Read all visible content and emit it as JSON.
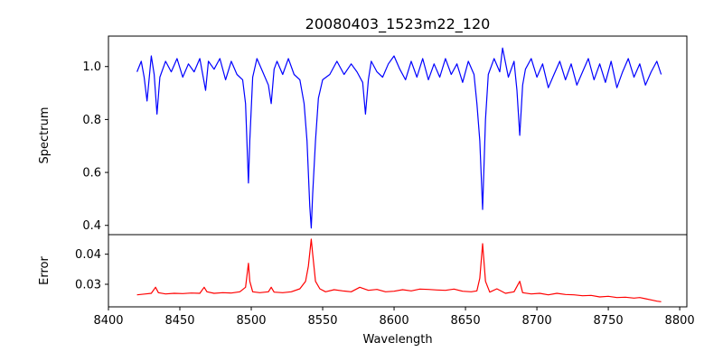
{
  "chart_data": [
    {
      "type": "line",
      "title": "20080403_1523m22_120",
      "xlabel": "",
      "ylabel": "Spectrum",
      "xlim": [
        8400,
        8805
      ],
      "ylim": [
        0.365,
        1.115
      ],
      "xticks": [
        8400,
        8450,
        8500,
        8550,
        8600,
        8650,
        8700,
        8750,
        8800
      ],
      "yticks": [
        0.4,
        0.6,
        0.8,
        1.0
      ],
      "ytick_labels": [
        "0.4",
        "0.6",
        "0.8",
        "1.0"
      ],
      "grid": false,
      "colors": {
        "line": "#0000ff"
      },
      "series": [
        {
          "x": [
            8420,
            8423,
            8425,
            8427,
            8430,
            8432,
            8434,
            8436,
            8440,
            8444,
            8448,
            8452,
            8456,
            8460,
            8464,
            8468,
            8470,
            8474,
            8478,
            8482,
            8486,
            8490,
            8494,
            8496,
            8498,
            8499,
            8501,
            8504,
            8508,
            8512,
            8514,
            8516,
            8518,
            8522,
            8526,
            8530,
            8534,
            8537,
            8539,
            8541,
            8542,
            8543,
            8545,
            8547,
            8550,
            8555,
            8560,
            8565,
            8570,
            8574,
            8578,
            8580,
            8582,
            8584,
            8588,
            8592,
            8596,
            8600,
            8604,
            8608,
            8612,
            8616,
            8620,
            8624,
            8628,
            8632,
            8636,
            8640,
            8644,
            8648,
            8652,
            8656,
            8658,
            8660,
            8662,
            8664,
            8666,
            8670,
            8674,
            8676,
            8680,
            8684,
            8686,
            8688,
            8690,
            8692,
            8696,
            8700,
            8704,
            8708,
            8712,
            8716,
            8720,
            8724,
            8728,
            8732,
            8736,
            8740,
            8744,
            8748,
            8752,
            8756,
            8760,
            8764,
            8768,
            8772,
            8776,
            8780,
            8784,
            8787
          ],
          "values": [
            0.98,
            1.02,
            0.96,
            0.87,
            1.04,
            0.97,
            0.82,
            0.96,
            1.02,
            0.98,
            1.03,
            0.96,
            1.01,
            0.98,
            1.03,
            0.91,
            1.02,
            0.99,
            1.03,
            0.95,
            1.02,
            0.97,
            0.95,
            0.86,
            0.56,
            0.72,
            0.96,
            1.03,
            0.98,
            0.93,
            0.86,
            0.99,
            1.02,
            0.97,
            1.03,
            0.97,
            0.95,
            0.86,
            0.72,
            0.47,
            0.39,
            0.52,
            0.72,
            0.88,
            0.95,
            0.97,
            1.02,
            0.97,
            1.01,
            0.98,
            0.94,
            0.82,
            0.95,
            1.02,
            0.98,
            0.96,
            1.01,
            1.04,
            0.99,
            0.95,
            1.02,
            0.96,
            1.03,
            0.95,
            1.01,
            0.96,
            1.03,
            0.97,
            1.01,
            0.94,
            1.02,
            0.97,
            0.86,
            0.72,
            0.46,
            0.8,
            0.97,
            1.03,
            0.98,
            1.07,
            0.96,
            1.02,
            0.91,
            0.74,
            0.93,
            0.99,
            1.03,
            0.96,
            1.01,
            0.92,
            0.97,
            1.02,
            0.95,
            1.01,
            0.93,
            0.98,
            1.03,
            0.95,
            1.01,
            0.94,
            1.02,
            0.92,
            0.98,
            1.03,
            0.96,
            1.01,
            0.93,
            0.98,
            1.02,
            0.97
          ]
        }
      ]
    },
    {
      "type": "line",
      "title": "",
      "xlabel": "Wavelength",
      "ylabel": "Error",
      "xlim": [
        8400,
        8805
      ],
      "ylim": [
        0.0225,
        0.0465
      ],
      "xticks": [
        8400,
        8450,
        8500,
        8550,
        8600,
        8650,
        8700,
        8750,
        8800
      ],
      "yticks": [
        0.03,
        0.04
      ],
      "ytick_labels": [
        "0.03",
        "0.04"
      ],
      "grid": false,
      "colors": {
        "line": "#ff0000"
      },
      "series": [
        {
          "x": [
            8420,
            8426,
            8430,
            8433,
            8435,
            8440,
            8446,
            8452,
            8458,
            8464,
            8467,
            8469,
            8474,
            8480,
            8486,
            8492,
            8496,
            8498,
            8499,
            8501,
            8506,
            8512,
            8514,
            8516,
            8522,
            8528,
            8534,
            8538,
            8540,
            8542,
            8543,
            8545,
            8548,
            8552,
            8558,
            8564,
            8570,
            8576,
            8582,
            8588,
            8594,
            8600,
            8606,
            8612,
            8618,
            8624,
            8630,
            8636,
            8642,
            8648,
            8654,
            8658,
            8660,
            8662,
            8664,
            8667,
            8672,
            8678,
            8684,
            8688,
            8690,
            8696,
            8702,
            8708,
            8714,
            8720,
            8726,
            8732,
            8738,
            8744,
            8750,
            8756,
            8762,
            8768,
            8772,
            8776,
            8780,
            8784,
            8787
          ],
          "values": [
            0.0265,
            0.0268,
            0.027,
            0.029,
            0.0272,
            0.0268,
            0.027,
            0.0269,
            0.0271,
            0.027,
            0.029,
            0.0275,
            0.027,
            0.0272,
            0.0271,
            0.0275,
            0.029,
            0.037,
            0.031,
            0.0275,
            0.0272,
            0.0275,
            0.029,
            0.0274,
            0.0272,
            0.0275,
            0.0285,
            0.031,
            0.036,
            0.045,
            0.04,
            0.031,
            0.0285,
            0.0275,
            0.0282,
            0.0278,
            0.0275,
            0.029,
            0.028,
            0.0283,
            0.0275,
            0.0277,
            0.0282,
            0.0278,
            0.0284,
            0.0283,
            0.0281,
            0.028,
            0.0284,
            0.0277,
            0.0275,
            0.0278,
            0.032,
            0.0435,
            0.031,
            0.0274,
            0.0285,
            0.027,
            0.0275,
            0.031,
            0.0272,
            0.0268,
            0.027,
            0.0265,
            0.027,
            0.0266,
            0.0265,
            0.0262,
            0.0263,
            0.0258,
            0.026,
            0.0256,
            0.0257,
            0.0254,
            0.0256,
            0.0252,
            0.0248,
            0.0244,
            0.0242
          ]
        }
      ]
    }
  ]
}
